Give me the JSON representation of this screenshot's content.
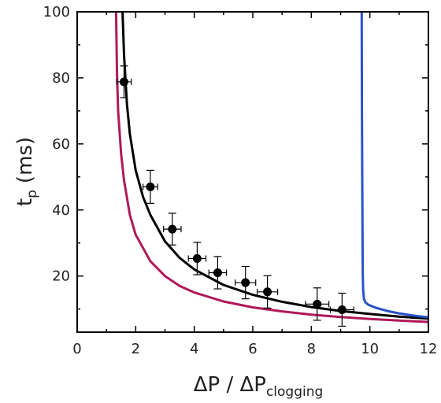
{
  "chart_data": {
    "type": "scatter",
    "title": "",
    "xlabel": "ΔP / ΔP",
    "xlabel_subscript": "clogging",
    "ylabel": "t",
    "ylabel_subscript": "p",
    "ylabel_unit": "(ms)",
    "xlim": [
      0,
      12
    ],
    "ylim": [
      3,
      100
    ],
    "x_ticks": [
      "0",
      "2",
      "4",
      "6",
      "8",
      "10",
      "12"
    ],
    "y_ticks": [
      "20",
      "40",
      "60",
      "80",
      "100"
    ],
    "grid": false,
    "legend": "none",
    "points": [
      {
        "x": 1.6,
        "y": 78.8,
        "xerr": 0.25,
        "yerr": 4.8
      },
      {
        "x": 2.5,
        "y": 47.0,
        "xerr": 0.25,
        "yerr": 5.0
      },
      {
        "x": 3.25,
        "y": 34.2,
        "xerr": 0.3,
        "yerr": 4.8
      },
      {
        "x": 4.1,
        "y": 25.3,
        "xerr": 0.3,
        "yerr": 4.9
      },
      {
        "x": 4.8,
        "y": 21.0,
        "xerr": 0.3,
        "yerr": 4.9
      },
      {
        "x": 5.75,
        "y": 18.0,
        "xerr": 0.35,
        "yerr": 4.9
      },
      {
        "x": 6.5,
        "y": 15.2,
        "xerr": 0.35,
        "yerr": 4.9
      },
      {
        "x": 8.2,
        "y": 11.5,
        "xerr": 0.4,
        "yerr": 4.9
      },
      {
        "x": 9.05,
        "y": 9.8,
        "xerr": 0.4,
        "yerr": 5.0
      }
    ],
    "curves": [
      {
        "color": "#000000",
        "x": [
          1.55,
          1.6,
          1.7,
          1.8,
          2.0,
          2.25,
          2.5,
          3.0,
          3.5,
          4.0,
          5.0,
          6.0,
          7.0,
          8.0,
          9.0,
          10.0,
          11.0,
          12.0
        ],
        "y": [
          100,
          87,
          72,
          63,
          52,
          44,
          38.5,
          30.5,
          25.5,
          22.0,
          17.3,
          14.3,
          12.2,
          10.6,
          9.4,
          8.5,
          7.7,
          7.1
        ]
      },
      {
        "color": "#b0185a",
        "x": [
          1.33,
          1.36,
          1.4,
          1.5,
          1.6,
          1.8,
          2.0,
          2.5,
          3.0,
          3.5,
          4.0,
          5.0,
          6.0,
          7.0,
          8.0,
          9.0,
          10.0,
          11.0,
          12.0
        ],
        "y": [
          100,
          82,
          70,
          57,
          49,
          38.5,
          32.5,
          24.5,
          20.0,
          17.0,
          15.0,
          12.3,
          10.5,
          9.3,
          8.3,
          7.6,
          7.0,
          6.5,
          6.1
        ]
      },
      {
        "color": "#2a52c9",
        "x": [
          9.72,
          9.73,
          9.74,
          9.75,
          9.76,
          9.77,
          9.8,
          9.85,
          9.95,
          10.2,
          10.6,
          11.0,
          11.5,
          12.0
        ],
        "y": [
          100,
          70,
          50,
          30,
          20,
          16,
          13,
          12,
          11.3,
          10.4,
          9.4,
          8.7,
          8.0,
          7.5
        ]
      }
    ]
  }
}
